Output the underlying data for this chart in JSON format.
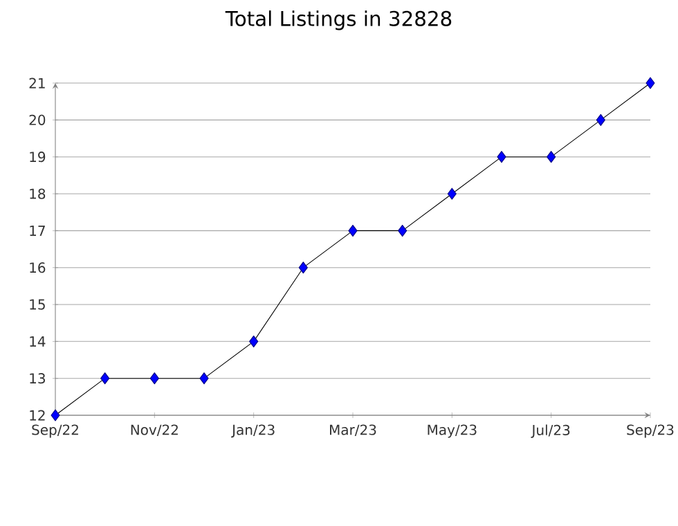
{
  "chart_data": {
    "type": "line",
    "title": "Total Listings in 32828",
    "x": [
      "2022-09",
      "2022-10",
      "2022-11",
      "2022-12",
      "2023-01",
      "2023-02",
      "2023-03",
      "2023-04",
      "2023-05",
      "2023-06",
      "2023-07",
      "2023-08",
      "2023-09"
    ],
    "values": [
      12,
      13,
      13,
      13,
      14,
      16,
      17,
      17,
      18,
      19,
      19,
      20,
      21
    ],
    "color": "#0000ff",
    "xlim": [
      "2022-09",
      "2023-09"
    ],
    "xticks": [
      {
        "value": "2022-09",
        "label": "Sep/22"
      },
      {
        "value": "2022-11",
        "label": "Nov/22"
      },
      {
        "value": "2023-01",
        "label": "Jan/23"
      },
      {
        "value": "2023-03",
        "label": "Mar/23"
      },
      {
        "value": "2023-05",
        "label": "May/23"
      },
      {
        "value": "2023-07",
        "label": "Jul/23"
      },
      {
        "value": "2023-09",
        "label": "Sep/23"
      }
    ],
    "ylim": [
      12,
      21
    ],
    "yticks": [
      12,
      13,
      14,
      15,
      16,
      17,
      18,
      19,
      20,
      21
    ],
    "grid": "y",
    "marker": "diamond",
    "line_style": "solid"
  }
}
